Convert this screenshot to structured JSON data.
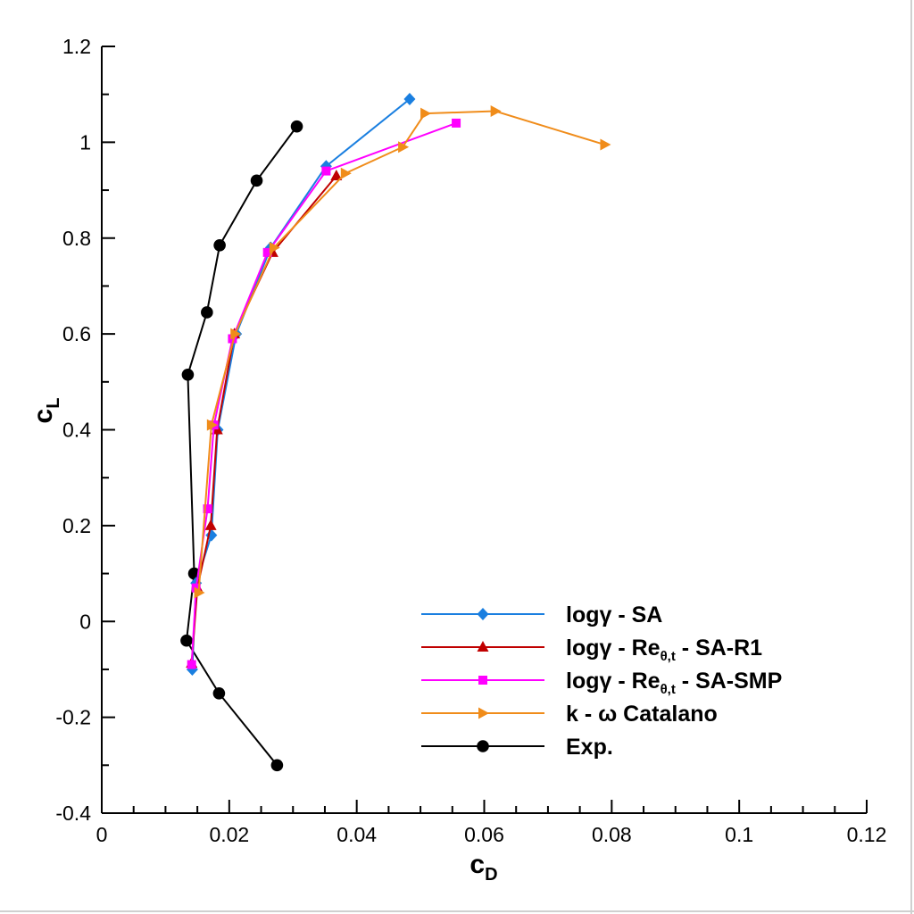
{
  "chart_data": {
    "type": "line",
    "title": "",
    "xlabel": {
      "main": "c",
      "sub": "D"
    },
    "ylabel": {
      "main": "c",
      "sub": "L"
    },
    "xlim": [
      0,
      0.12
    ],
    "ylim": [
      -0.4,
      1.2
    ],
    "xticks": [
      0,
      0.02,
      0.04,
      0.06,
      0.08,
      0.1,
      0.12
    ],
    "xtick_labels": [
      "0",
      "0.02",
      "0.04",
      "0.06",
      "0.08",
      "0.1",
      "0.12"
    ],
    "yticks": [
      -0.4,
      -0.2,
      0,
      0.2,
      0.4,
      0.6,
      0.8,
      1,
      1.2
    ],
    "ytick_labels": [
      "-0.4",
      "-0.2",
      "0",
      "0.2",
      "0.4",
      "0.6",
      "0.8",
      "1",
      "1.2"
    ],
    "grid": false,
    "legend_position": "bottom-right",
    "series": [
      {
        "name": "logγ - SA",
        "legend": {
          "parts": [
            {
              "text": "logγ - SA"
            }
          ]
        },
        "color": "#1a7fe0",
        "marker": "diamond",
        "x": [
          0.0142,
          0.0148,
          0.0172,
          0.0182,
          0.0211,
          0.0265,
          0.0352,
          0.0483
        ],
        "y": [
          -0.1,
          0.08,
          0.18,
          0.4,
          0.6,
          0.78,
          0.95,
          1.09
        ]
      },
      {
        "name": "logγ - Reθ,t - SA-R1",
        "legend": {
          "parts": [
            {
              "text": "logγ - Re"
            },
            {
              "text": "θ,t",
              "sub": true
            },
            {
              "text": " - SA-R1"
            }
          ]
        },
        "color": "#c00000",
        "marker": "triangle-up",
        "x": [
          0.0141,
          0.015,
          0.0171,
          0.0181,
          0.0208,
          0.0268,
          0.0368
        ],
        "y": [
          -0.087,
          0.07,
          0.2,
          0.4,
          0.6,
          0.77,
          0.93
        ]
      },
      {
        "name": "logγ - Reθ,t - SA-SMP",
        "legend": {
          "parts": [
            {
              "text": "logγ - Re"
            },
            {
              "text": "θ,t",
              "sub": true
            },
            {
              "text": " - SA-SMP"
            }
          ]
        },
        "color": "#ff00ff",
        "marker": "square",
        "x": [
          0.0141,
          0.0148,
          0.0166,
          0.0176,
          0.0205,
          0.026,
          0.0352,
          0.0556
        ],
        "y": [
          -0.09,
          0.07,
          0.235,
          0.41,
          0.59,
          0.77,
          0.94,
          1.04
        ]
      },
      {
        "name": "k - ω Catalano",
        "legend": {
          "parts": [
            {
              "text": "k - ω Catalano"
            }
          ]
        },
        "color": "#f08c1a",
        "marker": "triangle-right",
        "x": [
          0.0152,
          0.0172,
          0.0209,
          0.027,
          0.0382,
          0.0472,
          0.0507,
          0.0617,
          0.0789
        ],
        "y": [
          0.06,
          0.41,
          0.6,
          0.78,
          0.935,
          0.99,
          1.06,
          1.065,
          0.995
        ]
      },
      {
        "name": "Exp.",
        "legend": {
          "parts": [
            {
              "text": "Exp."
            }
          ]
        },
        "color": "#000000",
        "marker": "circle",
        "x": [
          0.0275,
          0.0184,
          0.0133,
          0.0145,
          0.0135,
          0.0165,
          0.0185,
          0.0243,
          0.0306
        ],
        "y": [
          -0.3,
          -0.15,
          -0.04,
          0.1,
          0.515,
          0.645,
          0.785,
          0.92,
          1.033
        ]
      }
    ]
  }
}
